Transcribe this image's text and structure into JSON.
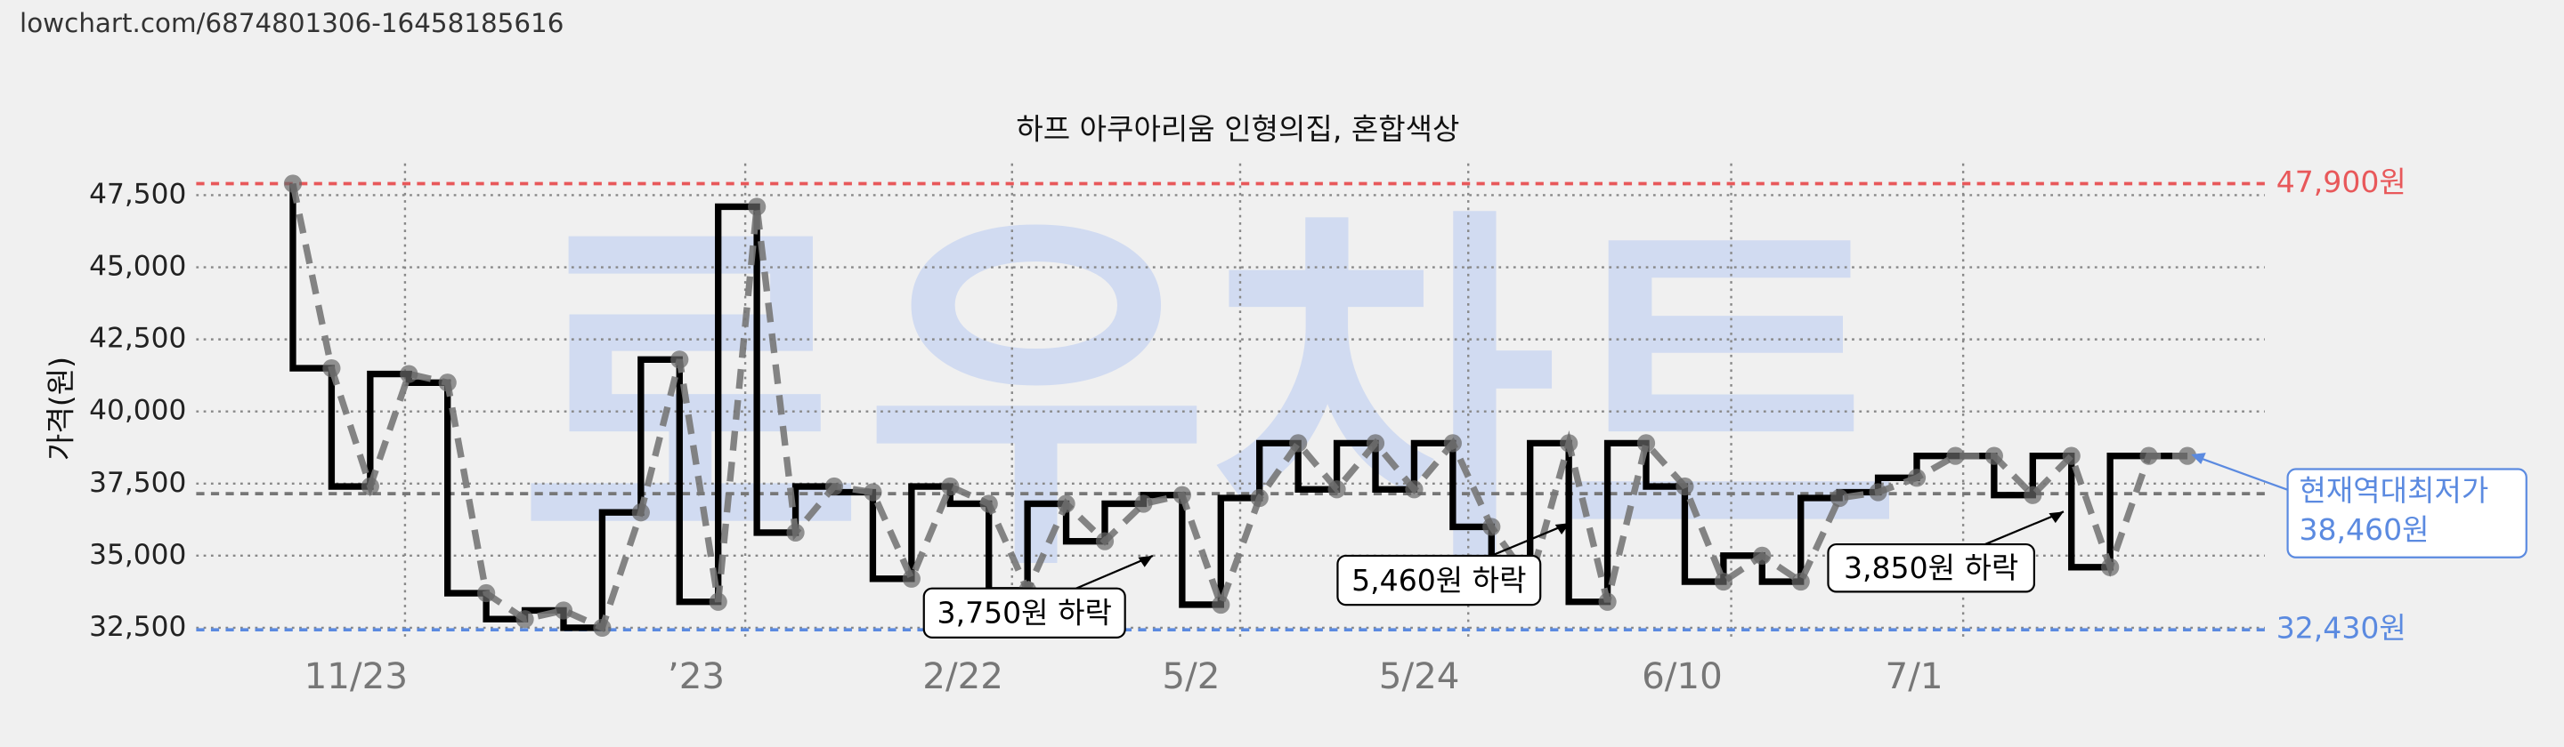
{
  "header": {
    "url": "lowchart.com/6874801306-16458185616"
  },
  "chart_data": {
    "type": "line",
    "title": "하프 아쿠아리움 인형의집, 혼합색상",
    "watermark": "로우차트",
    "ylabel": "가격(원)",
    "x": [
      0,
      1,
      2,
      3,
      4,
      5,
      6,
      7,
      8,
      9,
      10,
      11,
      12,
      13,
      14,
      15,
      16,
      17,
      18,
      19,
      20,
      21,
      22,
      23,
      24,
      25,
      26,
      27,
      28,
      29,
      30,
      31,
      32,
      33,
      34,
      35,
      36,
      37,
      38,
      39,
      40,
      41,
      42,
      43,
      44,
      45,
      46,
      47,
      48,
      49
    ],
    "series": [
      {
        "color": "#000000",
        "values": [
          47900,
          41500,
          37400,
          41300,
          41000,
          33700,
          32800,
          33100,
          32500,
          36500,
          41800,
          33400,
          47100,
          35800,
          37400,
          37200,
          34200,
          37400,
          36800,
          33800,
          36800,
          35500,
          36800,
          37100,
          33300,
          37000,
          38900,
          37300,
          38900,
          37300,
          38900,
          36000,
          34100,
          38900,
          33400,
          38900,
          37400,
          34100,
          35000,
          34100,
          37000,
          37200,
          37700,
          38460,
          38460,
          37100,
          38460,
          34600,
          38460,
          38460
        ]
      }
    ],
    "xlim": [
      -2.5,
      51
    ],
    "xticks": [
      {
        "value": 2.9,
        "label": "11/23"
      },
      {
        "value": 11.7,
        "label": "’23"
      },
      {
        "value": 18.6,
        "label": "2/22"
      },
      {
        "value": 24.5,
        "label": "5/2"
      },
      {
        "value": 30.4,
        "label": "5/24"
      },
      {
        "value": 37.2,
        "label": "6/10"
      },
      {
        "value": 43.2,
        "label": "7/1"
      }
    ],
    "ylim": [
      32050,
      48600
    ],
    "yticks": [
      {
        "value": 32500,
        "label": "32,500"
      },
      {
        "value": 35000,
        "label": "35,000"
      },
      {
        "value": 37500,
        "label": "37,500"
      },
      {
        "value": 40000,
        "label": "40,000"
      },
      {
        "value": 42500,
        "label": "42,500"
      },
      {
        "value": 45000,
        "label": "45,000"
      },
      {
        "value": 47500,
        "label": "47,500"
      }
    ],
    "grid": true,
    "reference_lines": [
      {
        "value": 47900,
        "label": "47,900원",
        "color": "#e8585a"
      },
      {
        "value": 32430,
        "label": "32,430원",
        "color": "#5b8ae0"
      },
      {
        "value": 37150,
        "color": "#777777"
      }
    ],
    "annotations": [
      "3,750원 하락",
      "5,460원 하락",
      "3,850원 하락"
    ],
    "current_label": [
      "현재역대최저가",
      "38,460원"
    ]
  }
}
